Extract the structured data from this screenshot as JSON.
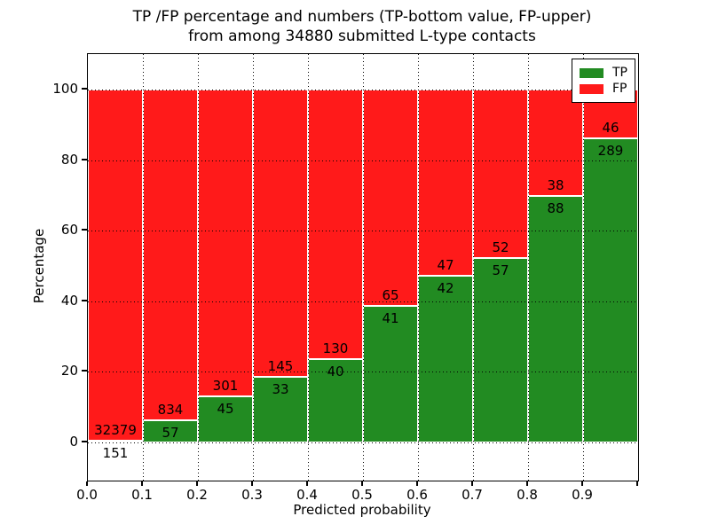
{
  "figure": {
    "title_line1": "TP /FP percentage and numbers (TP-bottom value, FP-upper)",
    "title_line2": "from among 34880 submitted L-type contacts",
    "xlabel": "Predicted probability",
    "ylabel": "Percentage"
  },
  "legend": {
    "items": [
      {
        "label": "TP",
        "color": "#228b22"
      },
      {
        "label": "FP",
        "color": "#ff1a1a"
      }
    ]
  },
  "chart_data": {
    "type": "bar",
    "stacked": true,
    "normalized": "each bar scaled to 100%",
    "title": "TP /FP percentage and numbers (TP-bottom value, FP-upper) from among 34880 submitted L-type contacts",
    "xlabel": "Predicted probability",
    "ylabel": "Percentage",
    "total_contacts": 34880,
    "bin_edges": [
      0.0,
      0.1,
      0.2,
      0.3,
      0.4,
      0.5,
      0.6,
      0.7,
      0.8,
      0.9,
      1.0
    ],
    "categories": [
      "0.0-0.1",
      "0.1-0.2",
      "0.2-0.3",
      "0.3-0.4",
      "0.4-0.5",
      "0.5-0.6",
      "0.6-0.7",
      "0.7-0.8",
      "0.8-0.9",
      "0.9-1.0"
    ],
    "series": [
      {
        "name": "TP",
        "color": "#228b22",
        "counts": [
          151,
          57,
          45,
          33,
          40,
          41,
          42,
          57,
          88,
          289
        ]
      },
      {
        "name": "FP",
        "color": "#ff1a1a",
        "counts": [
          32379,
          834,
          301,
          145,
          130,
          65,
          47,
          52,
          38,
          46
        ]
      }
    ],
    "tp_percent": [
      0.46,
      6.4,
      13.01,
      18.54,
      23.53,
      38.68,
      47.19,
      52.29,
      69.84,
      86.27
    ],
    "xticks": [
      "0.0",
      "0.1",
      "0.2",
      "0.3",
      "0.4",
      "0.5",
      "0.6",
      "0.7",
      "0.8",
      "0.9"
    ],
    "yticks": [
      0,
      20,
      40,
      60,
      80,
      100
    ],
    "xlim": [
      0.0,
      1.0
    ],
    "ylim": [
      -11,
      110
    ],
    "grid": "dotted",
    "legend_position": "upper right"
  }
}
